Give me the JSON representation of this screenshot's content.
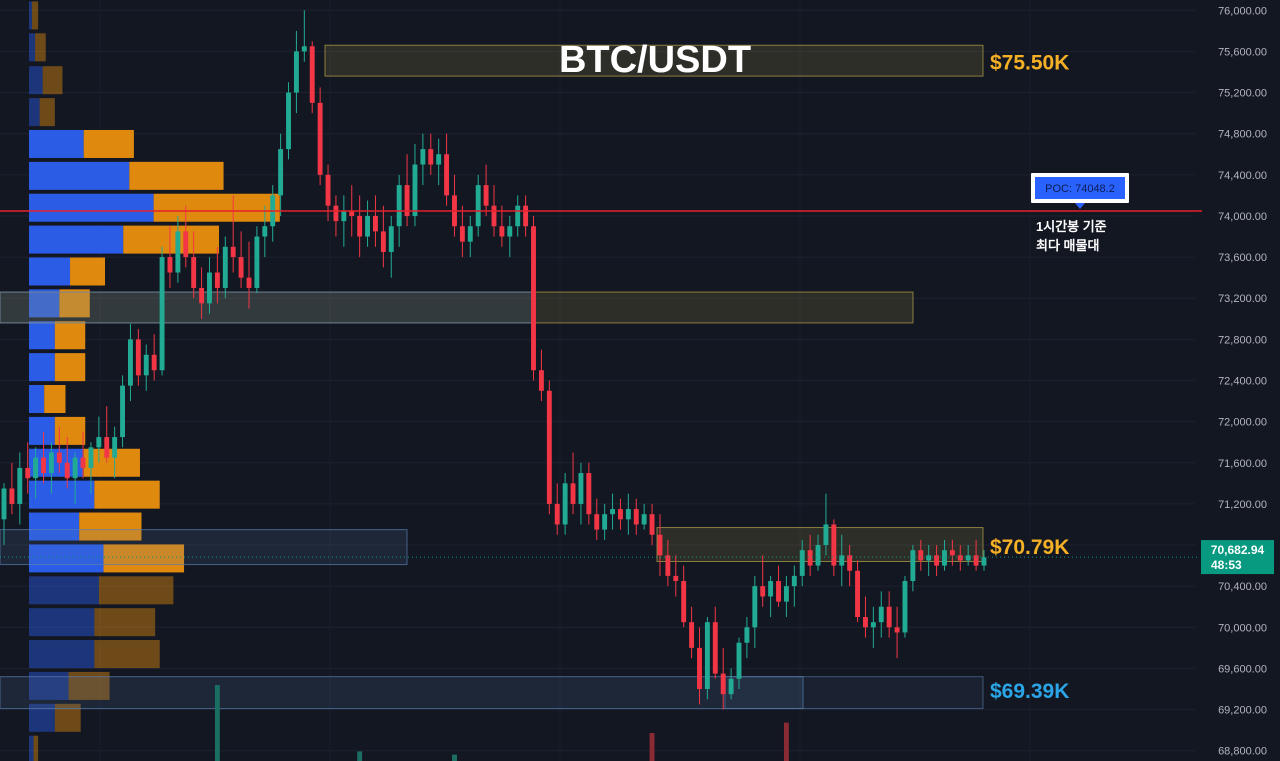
{
  "chart_data": {
    "type": "candlestick",
    "title": "BTC/USDT",
    "y_axis": {
      "min": 68700,
      "max": 76100,
      "ticks": [
        76000,
        75600,
        75200,
        74800,
        74400,
        74000,
        73600,
        73200,
        72800,
        72400,
        72000,
        71600,
        71200,
        70800,
        70400,
        70000,
        69600,
        69200,
        68800
      ],
      "tick_labels": [
        "76,000.00",
        "75,600.00",
        "75,200.00",
        "74,800.00",
        "74,400.00",
        "74,000.00",
        "73,600.00",
        "73,200.00",
        "72,800.00",
        "72,400.00",
        "72,000.00",
        "71,600.00",
        "71,200.00",
        "70,800.00",
        "70,400.00",
        "70,000.00",
        "69,600.00",
        "69,200.00",
        "68,800.00"
      ]
    },
    "current_price": {
      "value": 70682.94,
      "label": "70,682.94",
      "countdown": "48:53",
      "color": "#089981"
    },
    "poc": {
      "value": 74048.2,
      "label": "POC: 74048.2",
      "note_line1": "1시간봉 기준",
      "note_line2": "최다 매물대",
      "line_color": "#e5202c"
    },
    "annotations": [
      {
        "label": "$75.50K",
        "price": 75500,
        "color": "#f5b025"
      },
      {
        "label": "$70.79K",
        "price": 70790,
        "color": "#f5b025"
      },
      {
        "label": "$69.39K",
        "price": 69390,
        "color": "#2aa6e8"
      }
    ],
    "zones": [
      {
        "type": "resistance",
        "top": 75660,
        "bottom": 75360,
        "color": "#b9a54c"
      },
      {
        "type": "resistance",
        "top": 73260,
        "bottom": 72960,
        "color": "#b9a54c"
      },
      {
        "type": "resistance",
        "top": 70970,
        "bottom": 70640,
        "color": "#b9a54c"
      },
      {
        "type": "support",
        "top": 70950,
        "bottom": 70610,
        "color": "#5a7fb0"
      },
      {
        "type": "support",
        "top": 73260,
        "bottom": 72960,
        "color": "#5a7fb0"
      },
      {
        "type": "support",
        "top": 69520,
        "bottom": 69210,
        "color": "#5a7fb0"
      }
    ],
    "volume_profile": [
      {
        "price": 75950,
        "buy": 2,
        "sell": 4
      },
      {
        "price": 75640,
        "buy": 4,
        "sell": 7
      },
      {
        "price": 75320,
        "buy": 9,
        "sell": 13
      },
      {
        "price": 75010,
        "buy": 7,
        "sell": 10
      },
      {
        "price": 74700,
        "buy": 36,
        "sell": 33
      },
      {
        "price": 74390,
        "buy": 66,
        "sell": 62
      },
      {
        "price": 74080,
        "buy": 82,
        "sell": 83
      },
      {
        "price": 73770,
        "buy": 62,
        "sell": 63
      },
      {
        "price": 73460,
        "buy": 27,
        "sell": 23
      },
      {
        "price": 73150,
        "buy": 20,
        "sell": 20
      },
      {
        "price": 72840,
        "buy": 17,
        "sell": 20
      },
      {
        "price": 72530,
        "buy": 17,
        "sell": 20
      },
      {
        "price": 72220,
        "buy": 10,
        "sell": 14
      },
      {
        "price": 71910,
        "buy": 17,
        "sell": 20
      },
      {
        "price": 71600,
        "buy": 36,
        "sell": 37
      },
      {
        "price": 71290,
        "buy": 43,
        "sell": 43
      },
      {
        "price": 70980,
        "buy": 33,
        "sell": 41
      },
      {
        "price": 70670,
        "buy": 49,
        "sell": 53
      },
      {
        "price": 70360,
        "buy": 46,
        "sell": 49
      },
      {
        "price": 70050,
        "buy": 43,
        "sell": 40
      },
      {
        "price": 69740,
        "buy": 43,
        "sell": 43
      },
      {
        "price": 69430,
        "buy": 26,
        "sell": 27
      },
      {
        "price": 69120,
        "buy": 17,
        "sell": 17
      },
      {
        "price": 68810,
        "buy": 3,
        "sell": 3
      }
    ],
    "candles": [
      [
        71050,
        71400,
        70800,
        71350
      ],
      [
        71350,
        71600,
        71100,
        71200
      ],
      [
        71200,
        71700,
        71000,
        71550
      ],
      [
        71550,
        71800,
        71300,
        71450
      ],
      [
        71450,
        71750,
        71250,
        71650
      ],
      [
        71650,
        71900,
        71400,
        71500
      ],
      [
        71500,
        71800,
        71300,
        71700
      ],
      [
        71700,
        71950,
        71500,
        71600
      ],
      [
        71600,
        71850,
        71350,
        71450
      ],
      [
        71450,
        71700,
        71200,
        71650
      ],
      [
        71650,
        71900,
        71450,
        71550
      ],
      [
        71550,
        71800,
        71300,
        71750
      ],
      [
        71750,
        72050,
        71600,
        71850
      ],
      [
        71850,
        72150,
        71600,
        71650
      ],
      [
        71650,
        71950,
        71450,
        71850
      ],
      [
        71850,
        72450,
        71750,
        72350
      ],
      [
        72350,
        72950,
        72200,
        72800
      ],
      [
        72800,
        72900,
        72350,
        72450
      ],
      [
        72450,
        72750,
        72300,
        72650
      ],
      [
        72650,
        72850,
        72400,
        72500
      ],
      [
        72500,
        73700,
        72450,
        73600
      ],
      [
        73600,
        73900,
        73300,
        73450
      ],
      [
        73450,
        74000,
        73350,
        73850
      ],
      [
        73850,
        74100,
        73500,
        73600
      ],
      [
        73600,
        73850,
        73200,
        73300
      ],
      [
        73300,
        73500,
        73000,
        73150
      ],
      [
        73150,
        73600,
        73050,
        73450
      ],
      [
        73450,
        73700,
        73150,
        73300
      ],
      [
        73300,
        73800,
        73200,
        73700
      ],
      [
        73700,
        74200,
        73450,
        73600
      ],
      [
        73600,
        73850,
        73300,
        73400
      ],
      [
        73400,
        73750,
        73100,
        73300
      ],
      [
        73300,
        73900,
        73250,
        73800
      ],
      [
        73800,
        74100,
        73600,
        73900
      ],
      [
        73900,
        74300,
        73750,
        74200
      ],
      [
        74200,
        74800,
        74000,
        74650
      ],
      [
        74650,
        75300,
        74550,
        75200
      ],
      [
        75200,
        75800,
        75000,
        75600
      ],
      [
        75600,
        76000,
        75500,
        75650
      ],
      [
        75650,
        75700,
        75000,
        75100
      ],
      [
        75100,
        75250,
        74300,
        74400
      ],
      [
        74400,
        74500,
        73950,
        74100
      ],
      [
        74100,
        74200,
        73800,
        73950
      ],
      [
        73950,
        74200,
        73700,
        74050
      ],
      [
        74050,
        74300,
        73800,
        74000
      ],
      [
        74000,
        74200,
        73600,
        73800
      ],
      [
        73800,
        74150,
        73700,
        74000
      ],
      [
        74000,
        74200,
        73700,
        73850
      ],
      [
        73850,
        74100,
        73500,
        73650
      ],
      [
        73650,
        74000,
        73400,
        73900
      ],
      [
        73900,
        74400,
        73700,
        74300
      ],
      [
        74300,
        74600,
        73900,
        74000
      ],
      [
        74000,
        74700,
        73900,
        74500
      ],
      [
        74500,
        74800,
        74300,
        74650
      ],
      [
        74650,
        74800,
        74400,
        74500
      ],
      [
        74500,
        74750,
        74300,
        74600
      ],
      [
        74600,
        74800,
        74100,
        74200
      ],
      [
        74200,
        74400,
        73800,
        73900
      ],
      [
        73900,
        74100,
        73600,
        73750
      ],
      [
        73750,
        74000,
        73600,
        73900
      ],
      [
        73900,
        74400,
        73800,
        74300
      ],
      [
        74300,
        74500,
        74000,
        74100
      ],
      [
        74100,
        74300,
        73800,
        73900
      ],
      [
        73900,
        74100,
        73700,
        73800
      ],
      [
        73800,
        74000,
        73600,
        73900
      ],
      [
        73900,
        74200,
        73800,
        74100
      ],
      [
        74100,
        74200,
        73800,
        73900
      ],
      [
        73900,
        74000,
        72400,
        72500
      ],
      [
        72500,
        72700,
        72200,
        72300
      ],
      [
        72300,
        72400,
        71100,
        71200
      ],
      [
        71200,
        71400,
        70900,
        71000
      ],
      [
        71000,
        71500,
        70900,
        71400
      ],
      [
        71400,
        71700,
        71100,
        71200
      ],
      [
        71200,
        71600,
        71000,
        71500
      ],
      [
        71500,
        71600,
        71000,
        71100
      ],
      [
        71100,
        71250,
        70850,
        70950
      ],
      [
        70950,
        71200,
        70850,
        71100
      ],
      [
        71100,
        71300,
        70950,
        71150
      ],
      [
        71150,
        71250,
        70950,
        71050
      ],
      [
        71050,
        71300,
        70900,
        71150
      ],
      [
        71150,
        71250,
        70900,
        71000
      ],
      [
        71000,
        71200,
        70950,
        71100
      ],
      [
        71100,
        71200,
        70800,
        70900
      ],
      [
        70900,
        71100,
        70500,
        70700
      ],
      [
        70700,
        70850,
        70400,
        70500
      ],
      [
        70500,
        70700,
        70300,
        70450
      ],
      [
        70450,
        70600,
        70000,
        70050
      ],
      [
        70050,
        70200,
        69700,
        69800
      ],
      [
        69800,
        70000,
        69250,
        69400
      ],
      [
        69400,
        70100,
        69300,
        70050
      ],
      [
        70050,
        70200,
        69500,
        69550
      ],
      [
        69550,
        69800,
        69200,
        69350
      ],
      [
        69350,
        69600,
        69300,
        69500
      ],
      [
        69500,
        69900,
        69400,
        69850
      ],
      [
        69850,
        70100,
        69700,
        70000
      ],
      [
        70000,
        70500,
        69800,
        70400
      ],
      [
        70400,
        70700,
        70200,
        70300
      ],
      [
        70300,
        70500,
        70100,
        70450
      ],
      [
        70450,
        70600,
        70200,
        70250
      ],
      [
        70250,
        70500,
        70100,
        70400
      ],
      [
        70400,
        70600,
        70200,
        70500
      ],
      [
        70500,
        70850,
        70400,
        70750
      ],
      [
        70750,
        70900,
        70500,
        70600
      ],
      [
        70600,
        70900,
        70550,
        70800
      ],
      [
        70800,
        71300,
        70700,
        71000
      ],
      [
        71000,
        71050,
        70500,
        70600
      ],
      [
        70600,
        70900,
        70400,
        70700
      ],
      [
        70700,
        70800,
        70400,
        70550
      ],
      [
        70550,
        70650,
        70050,
        70100
      ],
      [
        70100,
        70300,
        69900,
        70000
      ],
      [
        70000,
        70200,
        69800,
        70050
      ],
      [
        70050,
        70350,
        69900,
        70200
      ],
      [
        70200,
        70350,
        69900,
        70000
      ],
      [
        70000,
        70200,
        69700,
        69950
      ],
      [
        69950,
        70500,
        69900,
        70450
      ],
      [
        70450,
        70800,
        70350,
        70750
      ],
      [
        70750,
        70850,
        70550,
        70650
      ],
      [
        70650,
        70800,
        70500,
        70700
      ],
      [
        70700,
        70800,
        70500,
        70600
      ],
      [
        70600,
        70850,
        70550,
        70750
      ],
      [
        70750,
        70850,
        70600,
        70700
      ],
      [
        70700,
        70800,
        70550,
        70650
      ],
      [
        70650,
        70800,
        70600,
        70700
      ],
      [
        70700,
        70850,
        70550,
        70600
      ],
      [
        70600,
        70750,
        70550,
        70680
      ]
    ],
    "volume": [
      {
        "index": 27,
        "value": 0.95,
        "up": true
      },
      {
        "index": 45,
        "value": 0.12,
        "up": true
      },
      {
        "index": 57,
        "value": 0.08,
        "up": true
      },
      {
        "index": 82,
        "value": 0.35,
        "up": false
      },
      {
        "index": 99,
        "value": 0.48,
        "up": false
      }
    ]
  }
}
